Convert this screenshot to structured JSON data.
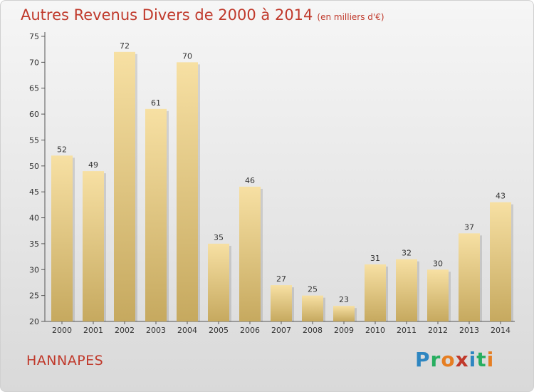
{
  "title": "Autres Revenus Divers de 2000 à 2014",
  "title_unit": "(en milliers d'€)",
  "place": "HANNAPES",
  "logo": {
    "letters": [
      "P",
      "r",
      "o",
      "x",
      "i",
      "t",
      "i"
    ],
    "colors": [
      "#2e86c1",
      "#27ae60",
      "#e67e22",
      "#c0392b",
      "#2e86c1",
      "#27ae60",
      "#e67e22"
    ]
  },
  "colors": {
    "title": "#c0392b",
    "bar_light": "#f5deA0",
    "bar_dark": "#c9ab62"
  },
  "chart_data": {
    "type": "bar",
    "title": "Autres Revenus Divers de 2000 à 2014",
    "categories": [
      "2000",
      "2001",
      "2002",
      "2003",
      "2004",
      "2005",
      "2006",
      "2007",
      "2008",
      "2009",
      "2010",
      "2011",
      "2012",
      "2013",
      "2014"
    ],
    "values": [
      52,
      49,
      72,
      61,
      70,
      35,
      46,
      27,
      25,
      23,
      31,
      32,
      30,
      37,
      43
    ],
    "ylim": [
      20,
      75
    ],
    "yticks": [
      20,
      25,
      30,
      35,
      40,
      45,
      50,
      55,
      60,
      65,
      70,
      75
    ],
    "grid": false,
    "xlabel": "",
    "ylabel": ""
  }
}
